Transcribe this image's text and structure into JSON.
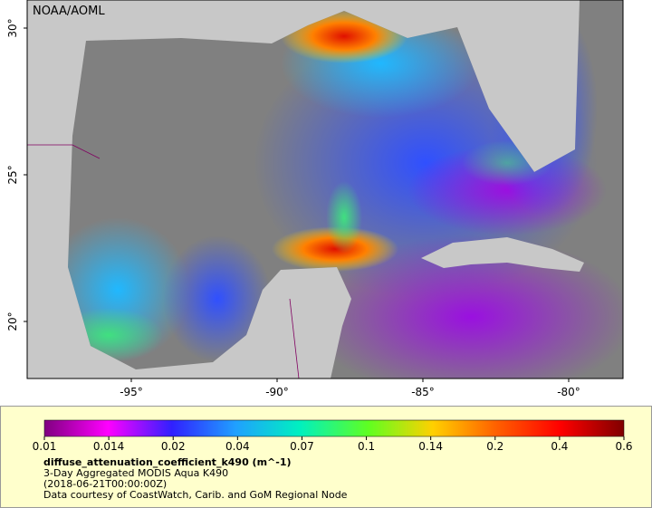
{
  "map": {
    "credit": "NOAA/AOML",
    "lat_ticks": [
      {
        "value": 30,
        "label": "30°"
      },
      {
        "value": 25,
        "label": "25°"
      },
      {
        "value": 20,
        "label": "20°"
      }
    ],
    "lon_ticks": [
      {
        "value": -95,
        "label": "-95°"
      },
      {
        "value": -90,
        "label": "-90°"
      },
      {
        "value": -85,
        "label": "-85°"
      },
      {
        "value": -80,
        "label": "-80°"
      }
    ]
  },
  "legend": {
    "colorbar_ticks": [
      0.01,
      0.014,
      0.02,
      0.04,
      0.07,
      0.1,
      0.14,
      0.2,
      0.4,
      0.6
    ],
    "variable": "diffuse_attenuation_coefficient_k490 (m^-1)",
    "dataset": "3-Day Aggregated MODIS Aqua K490",
    "time": "(2018-06-21T00:00:00Z)",
    "courtesy": "Data courtesy of CoastWatch, Carib. and GoM Regional Node"
  }
}
